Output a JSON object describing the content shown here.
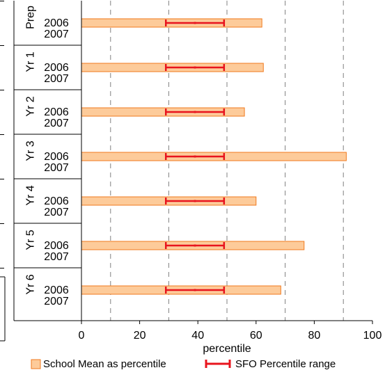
{
  "chart_data": {
    "type": "bar",
    "orientation": "horizontal",
    "xlabel": "percentile",
    "xlim": [
      0,
      100
    ],
    "xticks": [
      0,
      20,
      40,
      60,
      80,
      100
    ],
    "x_gridlines": [
      10,
      30,
      50,
      70,
      90
    ],
    "categories": [
      {
        "group": "Prep",
        "years": [
          "2006",
          "2007"
        ]
      },
      {
        "group": "Yr 1",
        "years": [
          "2006",
          "2007"
        ]
      },
      {
        "group": "Yr 2",
        "years": [
          "2006",
          "2007"
        ]
      },
      {
        "group": "Yr 3",
        "years": [
          "2006",
          "2007"
        ]
      },
      {
        "group": "Yr 4",
        "years": [
          "2006",
          "2007"
        ]
      },
      {
        "group": "Yr 5",
        "years": [
          "2006",
          "2007"
        ]
      },
      {
        "group": "Yr 6",
        "years": [
          "2006",
          "2007"
        ]
      }
    ],
    "series": [
      {
        "name": "School Mean as percentile",
        "values": [
          62,
          62.5,
          56,
          91,
          60,
          76.5,
          68.5
        ]
      },
      {
        "name": "SFO Percentile range",
        "ranges": [
          [
            29,
            49
          ],
          [
            29,
            49
          ],
          [
            29,
            49
          ],
          [
            29,
            49
          ],
          [
            29,
            49
          ],
          [
            29,
            49
          ],
          [
            29,
            49
          ]
        ],
        "midpoints": [
          39,
          39,
          39,
          39,
          39,
          39,
          39
        ]
      }
    ],
    "colors": {
      "bar_fill": "#FDCB9A",
      "bar_stroke": "#F07A1E",
      "range": "#E8141E",
      "grid": "#808080"
    },
    "legend": {
      "position": "bottom",
      "entries": [
        "School Mean as percentile",
        "SFO Percentile range"
      ]
    }
  }
}
